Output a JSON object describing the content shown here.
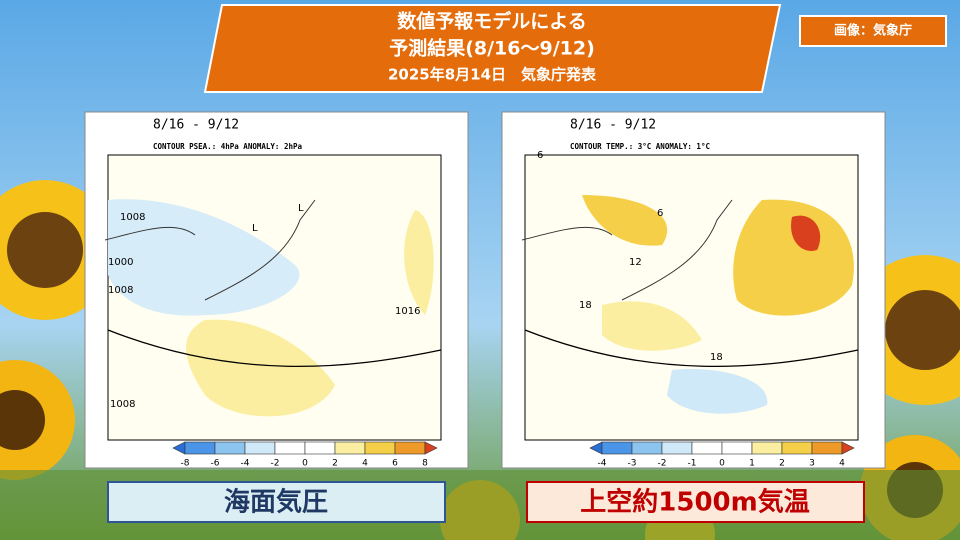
{
  "header": {
    "title_lines": [
      "数値予報モデルによる",
      "予測結果(8/16～9/12)",
      "2025年8月14日　気象庁発表"
    ]
  },
  "credit": "画像：気象庁",
  "panels": [
    {
      "period": "8/16 - 9/12",
      "contour_note": "CONTOUR PSEA.: 4hPa    ANOMALY: 2hPa",
      "map_labels": [
        "1008",
        "1000",
        "1008",
        "1016",
        "1008",
        "L",
        "L"
      ],
      "colorbar": {
        "ticks": [
          -8,
          -6,
          -4,
          -2,
          0,
          2,
          4,
          6,
          8
        ],
        "colors": [
          "#2a6fd6",
          "#4a95e8",
          "#8cc4f0",
          "#cfe9f8",
          "#ffffff",
          "#ffffff",
          "#fbeea0",
          "#f5cf48",
          "#ee9a28",
          "#d9401e"
        ]
      },
      "caption": "海面気圧"
    },
    {
      "period": "8/16 - 9/12",
      "contour_note": "CONTOUR TEMP.: 3°C    ANOMALY: 1°C",
      "map_labels": [
        "6",
        "6",
        "12",
        "18",
        "18"
      ],
      "colorbar": {
        "ticks": [
          -4,
          -3,
          -2,
          -1,
          0,
          1,
          2,
          3,
          4
        ],
        "colors": [
          "#2a6fd6",
          "#4a95e8",
          "#8cc4f0",
          "#cfe9f8",
          "#ffffff",
          "#ffffff",
          "#fbeea0",
          "#f5cf48",
          "#ee9a28",
          "#d9401e"
        ]
      },
      "caption": "上空約1500m気温"
    }
  ]
}
